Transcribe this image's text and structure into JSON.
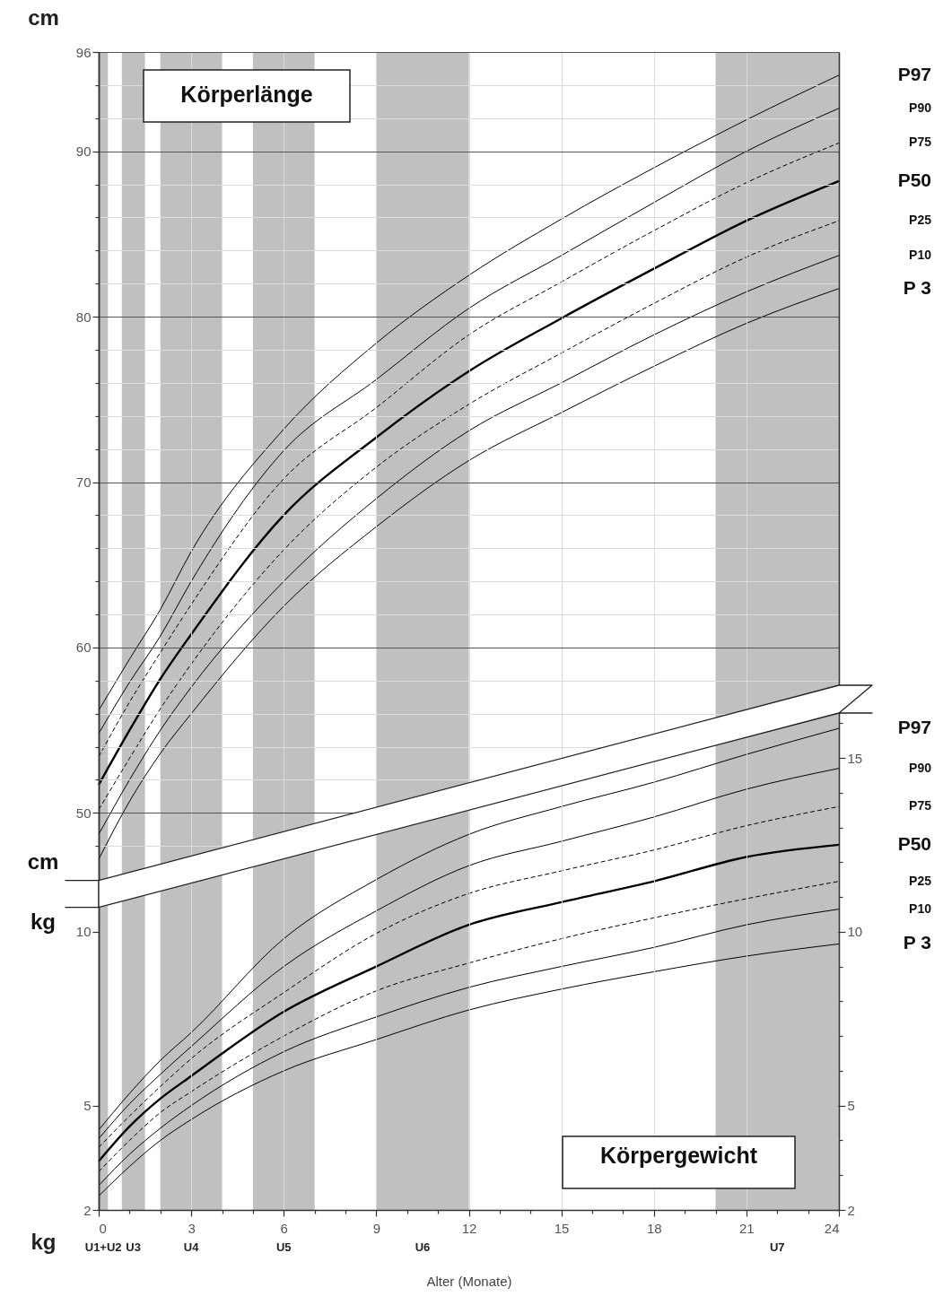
{
  "chart_data": {
    "type": "line",
    "xlabel": "Alter (Monate)",
    "ylabel": "cm",
    "y3label": "kg",
    "x": [
      0,
      1,
      2,
      3,
      6,
      9,
      12,
      15,
      18,
      21,
      24
    ],
    "xlim": [
      0,
      24
    ],
    "xticks": [
      0,
      {
        "value": 1,
        "label": null
      },
      {
        "value": 2,
        "label": null
      },
      3,
      {
        "value": 4,
        "label": null
      },
      {
        "value": 5,
        "label": null
      },
      6,
      {
        "value": 7,
        "label": null
      },
      {
        "value": 8,
        "label": null
      },
      9,
      {
        "value": 10,
        "label": null
      },
      {
        "value": 11,
        "label": null
      },
      12,
      {
        "value": 13,
        "label": null
      },
      {
        "value": 14,
        "label": null
      },
      15,
      {
        "value": 16,
        "label": null
      },
      {
        "value": 17,
        "label": null
      },
      18,
      {
        "value": 19,
        "label": null
      },
      {
        "value": 20,
        "label": null
      },
      21,
      {
        "value": 22,
        "label": null
      },
      {
        "value": 23,
        "label": null
      },
      24
    ],
    "ylim": [
      26,
      96
    ],
    "yticks": [
      {
        "value": 48,
        "label": null
      },
      50,
      {
        "value": 52,
        "label": null
      },
      {
        "value": 54,
        "label": null
      },
      {
        "value": 56,
        "label": null
      },
      {
        "value": 58,
        "label": null
      },
      60,
      {
        "value": 62,
        "label": null
      },
      {
        "value": 64,
        "label": null
      },
      {
        "value": 66,
        "label": null
      },
      {
        "value": 68,
        "label": null
      },
      70,
      {
        "value": 72,
        "label": null
      },
      {
        "value": 74,
        "label": null
      },
      {
        "value": 76,
        "label": null
      },
      {
        "value": 78,
        "label": null
      },
      80,
      {
        "value": 82,
        "label": null
      },
      {
        "value": 84,
        "label": null
      },
      {
        "value": 86,
        "label": null
      },
      {
        "value": 88,
        "label": null
      },
      90,
      {
        "value": 92,
        "label": null
      },
      {
        "value": 94,
        "label": null
      },
      96
    ],
    "y2lim": [
      2,
      35.3
    ],
    "y2ticks": [
      2,
      {
        "value": 3,
        "label": null
      },
      {
        "value": 4,
        "label": null
      },
      5,
      {
        "value": 6,
        "label": null
      },
      {
        "value": 7,
        "label": null
      },
      {
        "value": 8,
        "label": null
      },
      {
        "value": 9,
        "label": null
      },
      10,
      {
        "value": 11,
        "label": null
      },
      {
        "value": 12,
        "label": null
      },
      {
        "value": 13,
        "label": null
      },
      {
        "value": 14,
        "label": null
      },
      15,
      {
        "value": 16,
        "label": null
      }
    ],
    "y3lim": [
      2,
      35.3
    ],
    "y3ticks": [
      2,
      5,
      10
    ],
    "grid": true,
    "series": [
      {
        "name": "P97",
        "color": "#000000",
        "line_style": "solid",
        "values": [
          56.2,
          59.3,
          62.3,
          65.8,
          73.2,
          78.4,
          82.5,
          85.9,
          89.0,
          91.9,
          94.6
        ]
      },
      {
        "name": "P90",
        "color": "#000000",
        "line_style": "solid",
        "values": [
          54.8,
          57.9,
          60.7,
          64.0,
          71.9,
          76.2,
          80.5,
          83.7,
          86.9,
          90.0,
          92.6
        ]
      },
      {
        "name": "P75",
        "color": "#000000",
        "line_style": "dashed",
        "values": [
          53.4,
          56.7,
          59.7,
          62.6,
          70.2,
          74.5,
          78.9,
          82.1,
          85.2,
          88.1,
          90.5
        ]
      },
      {
        "name": "P50",
        "color": "#000000",
        "line_style": "solid",
        "values": [
          51.7,
          55.0,
          58.1,
          60.8,
          68.0,
          72.7,
          76.7,
          79.9,
          82.9,
          85.8,
          88.2
        ]
      },
      {
        "name": "P25",
        "color": "#000000",
        "line_style": "dashed",
        "values": [
          50.2,
          53.3,
          56.3,
          59.0,
          65.9,
          70.9,
          74.7,
          77.8,
          80.8,
          83.6,
          85.8
        ]
      },
      {
        "name": "P10",
        "color": "#000000",
        "line_style": "solid",
        "values": [
          48.7,
          52.0,
          55.0,
          57.6,
          64.0,
          69.0,
          73.1,
          76.0,
          78.9,
          81.5,
          83.7
        ]
      },
      {
        "name": "P 3",
        "color": "#000000",
        "line_style": "solid",
        "values": [
          47.2,
          50.7,
          53.6,
          56.0,
          62.5,
          67.3,
          71.3,
          74.2,
          77.0,
          79.6,
          81.7
        ]
      },
      {
        "name": "P97",
        "color": "#000000",
        "line_style": "solid",
        "axis": "y2",
        "values": [
          4.3,
          5.35,
          6.3,
          7.1,
          9.8,
          11.5,
          12.8,
          13.6,
          14.3,
          15.1,
          15.85
        ]
      },
      {
        "name": "P90",
        "color": "#000000",
        "line_style": "solid",
        "axis": "y2",
        "values": [
          4.05,
          5.05,
          5.9,
          6.7,
          9.0,
          10.6,
          11.9,
          12.6,
          13.3,
          14.1,
          14.7
        ]
      },
      {
        "name": "P75",
        "color": "#000000",
        "line_style": "dashed",
        "axis": "y2",
        "values": [
          3.8,
          4.7,
          5.55,
          6.35,
          8.25,
          9.95,
          11.1,
          11.75,
          12.35,
          13.05,
          13.6
        ]
      },
      {
        "name": "P50",
        "color": "#000000",
        "line_style": "solid",
        "axis": "y2",
        "values": [
          3.4,
          4.4,
          5.2,
          5.85,
          7.7,
          9.0,
          10.2,
          10.85,
          11.45,
          12.15,
          12.5
        ]
      },
      {
        "name": "P25",
        "color": "#000000",
        "line_style": "dashed",
        "axis": "y2",
        "values": [
          3.1,
          4.0,
          4.8,
          5.4,
          7.0,
          8.3,
          9.1,
          9.8,
          10.4,
          10.95,
          11.45
        ]
      },
      {
        "name": "P10",
        "color": "#000000",
        "line_style": "solid",
        "axis": "y2",
        "values": [
          2.7,
          3.6,
          4.35,
          5.0,
          6.55,
          7.55,
          8.4,
          9.0,
          9.55,
          10.2,
          10.65
        ]
      },
      {
        "name": "P 3",
        "color": "#000000",
        "line_style": "solid",
        "axis": "y2",
        "values": [
          2.4,
          3.25,
          4.0,
          4.6,
          6.0,
          6.9,
          7.75,
          8.35,
          8.85,
          9.3,
          9.65
        ]
      }
    ],
    "bands": [
      {
        "axis": "x",
        "from": 0,
        "to": 0.3,
        "label": "U1+U2",
        "color": "#c0c0c0"
      },
      {
        "axis": "x",
        "from": 0.75,
        "to": 1.5,
        "label": "U3",
        "color": "#c0c0c0"
      },
      {
        "axis": "x",
        "from": 2,
        "to": 4,
        "label": "U4",
        "color": "#c0c0c0"
      },
      {
        "axis": "x",
        "from": 5,
        "to": 7,
        "label": "U5",
        "color": "#c0c0c0"
      },
      {
        "axis": "x",
        "from": 9,
        "to": 12,
        "label": "U6",
        "color": "#c0c0c0"
      },
      {
        "axis": "x",
        "from": 20,
        "to": 24,
        "label": "U7",
        "color": "#c0c0c0"
      }
    ],
    "annotations": [
      "Körperlänge",
      "Körpergewicht",
      "cm",
      "kg"
    ]
  }
}
